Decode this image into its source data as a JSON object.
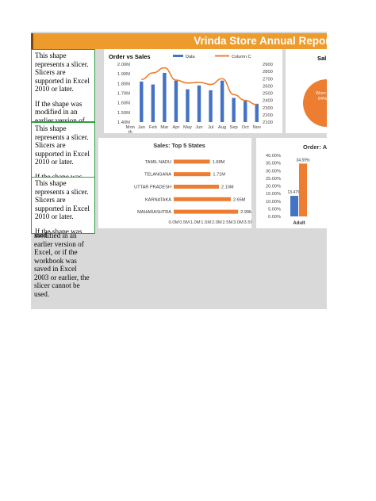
{
  "header": {
    "title": "Vrinda Store Annual Report",
    "color": "#ed9b2d"
  },
  "slicer_message": {
    "paragraph1": "This shape represents a slicer. Slicers are supported in Excel 2010 or later.",
    "paragraph2_visible": "If the shape was modified in an earlier version of",
    "paragraph2_short": "If the shape was",
    "overflow_first": "used",
    "overflow_rest": "modified in an earlier version of Excel, or if the workbook was saved in Excel 2003 or earlier, the slicer cannot be used."
  },
  "chart_data": [
    {
      "type": "line",
      "title": "Order vs Sales",
      "categories": [
        "Jan",
        "Feb",
        "Mar",
        "Apr",
        "May",
        "Jun",
        "Jul",
        "Aug",
        "Sep",
        "Oct",
        "Nov"
      ],
      "x_tick_labels": [
        "Mon",
        "Jan",
        "Feb",
        "Mar",
        "Apr",
        "May",
        "Jun",
        "Jul",
        "Aug",
        "Sep",
        "Oct",
        "Nov"
      ],
      "x_tick_extra": "th",
      "series": [
        {
          "name": "Data",
          "type": "bar",
          "axis": "left",
          "color": "#4472c4",
          "values": [
            1.82,
            1.79,
            1.91,
            1.83,
            1.74,
            1.78,
            1.73,
            1.83,
            1.65,
            1.62,
            1.59
          ]
        },
        {
          "name": "Column C",
          "type": "line",
          "axis": "right",
          "color": "#ed7d31",
          "values": [
            2690,
            2780,
            2850,
            2680,
            2640,
            2650,
            2620,
            2700,
            2480,
            2400,
            2340
          ]
        }
      ],
      "y_left": {
        "ticks": [
          "2.00M",
          "1.90M",
          "1.80M",
          "1.70M",
          "1.60M",
          "1.50M",
          "1.40M"
        ],
        "ylim": [
          1.4,
          2.0
        ]
      },
      "y_right": {
        "ticks": [
          "2900",
          "2800",
          "2700",
          "2600",
          "2500",
          "2400",
          "2300",
          "2200",
          "2100"
        ],
        "ylim": [
          2100,
          2900
        ]
      },
      "legend_position": "top"
    },
    {
      "type": "bar",
      "orientation": "horizontal",
      "title": "Sales: Top 5 States",
      "categories": [
        "TAMIL NADU",
        "TELANGANA",
        "UTTAR PRADESH",
        "KARNATAKA",
        "MAHARASHTRA"
      ],
      "values": [
        1.68,
        1.71,
        2.1,
        2.65,
        2.99
      ],
      "data_labels": [
        "1.68M",
        "1.71M",
        "2.10M",
        "2.65M",
        "2.99M"
      ],
      "x_ticks": [
        "0.0M",
        "0.5M",
        "1.0M",
        "1.5M",
        "2.0M",
        "2.5M",
        "3.0M",
        "3.5M"
      ],
      "xlim": [
        0,
        3.5
      ],
      "color": "#ed7d31"
    },
    {
      "type": "bar",
      "title": "Order: A",
      "categories": [
        "Adult"
      ],
      "series": [
        {
          "color": "#4472c4",
          "values": [
            13.47
          ]
        },
        {
          "color": "#ed7d31",
          "values": [
            34.59
          ]
        }
      ],
      "data_labels": [
        "13.47%",
        "34.59%"
      ],
      "y_ticks": [
        "40.00%",
        "35.00%",
        "30.00%",
        "25.00%",
        "20.00%",
        "15.00%",
        "10.00%",
        "5.00%",
        "0.00%"
      ],
      "ylim": [
        0,
        40
      ]
    },
    {
      "type": "pie",
      "title": "Sal",
      "labels": [
        "Wom",
        "64%"
      ],
      "color": "#ed7d31"
    }
  ]
}
